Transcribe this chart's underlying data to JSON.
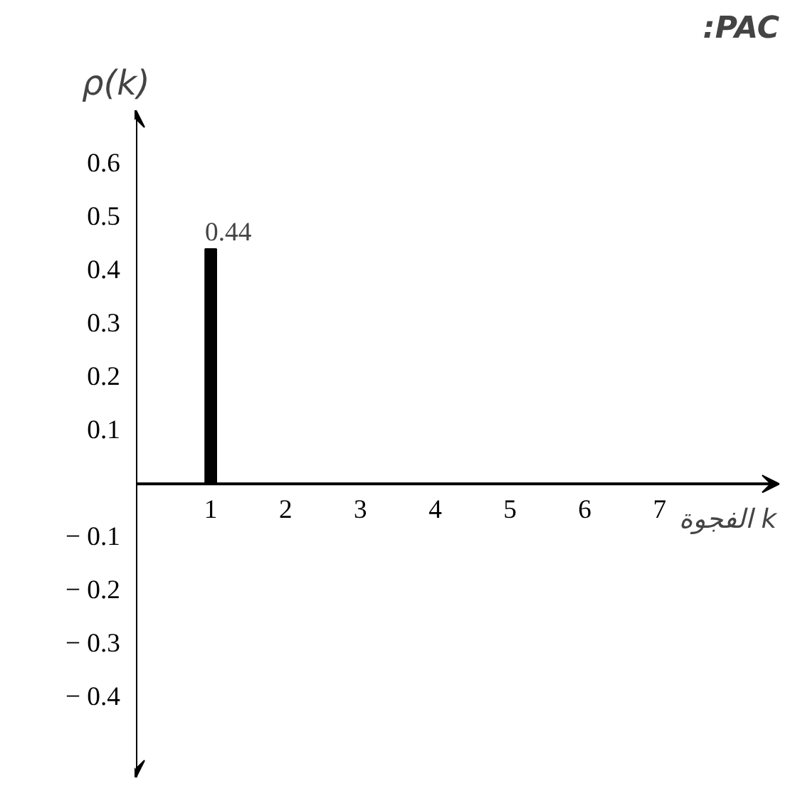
{
  "chart_data": {
    "type": "bar",
    "title": ":PAC",
    "ylabel": "ρ(k)",
    "xlabel": "الفجوة k",
    "x": [
      1
    ],
    "values": [
      0.44
    ],
    "color": "#000000",
    "data_labels": true,
    "xlim": [
      0,
      8.6
    ],
    "xticks": [
      1,
      2,
      3,
      4,
      5,
      6,
      7
    ],
    "ylim": [
      -0.55,
      0.7
    ],
    "yticks": [
      -0.4,
      -0.3,
      -0.2,
      -0.1,
      0.1,
      0.2,
      0.3,
      0.4,
      0.5,
      0.6
    ],
    "grid": false
  }
}
